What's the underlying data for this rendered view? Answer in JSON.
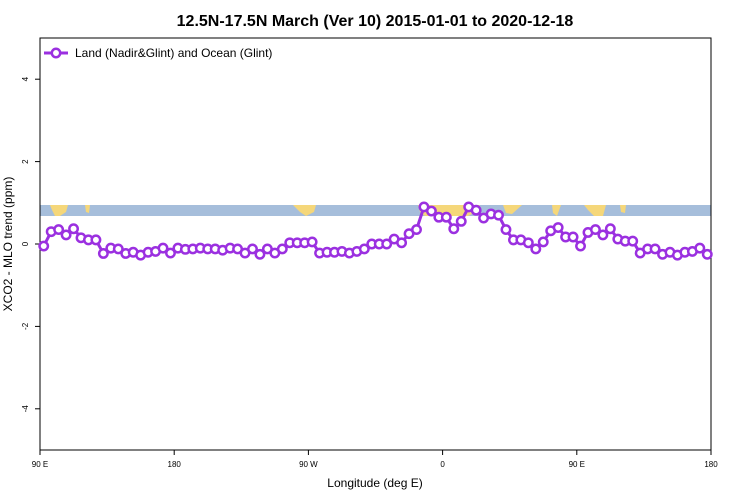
{
  "chart_data": {
    "type": "line",
    "title": "12.5N-17.5N March (Ver 10)   2015-01-01 to 2020-12-18",
    "x_label": "Longitude (deg E)",
    "y_label": "XCO2 - MLO trend (ppm)",
    "xlim": [
      90,
      540
    ],
    "ylim": [
      -5,
      5
    ],
    "xticks": [
      {
        "value": 90,
        "label": "90 E"
      },
      {
        "value": 180,
        "label": "180"
      },
      {
        "value": 270,
        "label": "90 W"
      },
      {
        "value": 360,
        "label": "0"
      },
      {
        "value": 450,
        "label": "90 E"
      },
      {
        "value": 540,
        "label": "180"
      }
    ],
    "yticks": [
      -4,
      -2,
      0,
      2,
      4
    ],
    "legend": "top-left",
    "x": [
      92.5,
      97.5,
      102.5,
      107.5,
      112.5,
      117.5,
      122.5,
      127.5,
      132.5,
      137.5,
      142.5,
      147.5,
      152.5,
      157.5,
      162.5,
      167.5,
      172.5,
      177.5,
      182.5,
      187.5,
      192.5,
      197.5,
      202.5,
      207.5,
      212.5,
      217.5,
      222.5,
      227.5,
      232.5,
      237.5,
      242.5,
      247.5,
      252.5,
      257.5,
      262.5,
      267.5,
      272.5,
      277.5,
      282.5,
      287.5,
      292.5,
      297.5,
      302.5,
      307.5,
      312.5,
      317.5,
      322.5,
      327.5,
      332.5,
      337.5,
      342.5,
      347.5,
      352.5,
      357.5,
      362.5,
      367.5,
      372.5,
      377.5,
      382.5,
      387.5,
      392.5,
      397.5,
      402.5,
      407.5,
      412.5,
      417.5,
      422.5,
      427.5,
      432.5,
      437.5,
      442.5,
      447.5,
      452.5,
      457.5,
      462.5,
      467.5,
      472.5,
      477.5,
      482.5,
      487.5,
      492.5,
      497.5,
      502.5,
      507.5,
      512.5,
      517.5,
      522.5,
      527.5,
      532.5,
      537.5
    ],
    "series": [
      {
        "name": "Land (Nadir&Glint) and Ocean (Glint)",
        "color": "#9b30e0",
        "values": [
          -0.05,
          0.3,
          0.35,
          0.22,
          0.37,
          0.15,
          0.1,
          0.1,
          -0.23,
          -0.1,
          -0.12,
          -0.23,
          -0.2,
          -0.27,
          -0.2,
          -0.18,
          -0.1,
          -0.22,
          -0.1,
          -0.13,
          -0.12,
          -0.1,
          -0.12,
          -0.12,
          -0.15,
          -0.1,
          -0.12,
          -0.22,
          -0.12,
          -0.25,
          -0.12,
          -0.22,
          -0.12,
          0.03,
          0.03,
          0.03,
          0.05,
          -0.22,
          -0.2,
          -0.2,
          -0.18,
          -0.22,
          -0.18,
          -0.12,
          0,
          0,
          0,
          0.12,
          0.03,
          0.25,
          0.35,
          0.9,
          0.8,
          0.65,
          0.65,
          0.37,
          0.55,
          0.9,
          0.82,
          0.63,
          0.73,
          0.7,
          0.35,
          0.1,
          0.1,
          0.03,
          -0.12,
          0.05,
          0.32,
          0.4,
          0.17,
          0.17,
          -0.05,
          0.28,
          0.35,
          0.22,
          0.37,
          0.12,
          0.07,
          0.07,
          -0.22,
          -0.12,
          -0.12,
          -0.25,
          -0.2,
          -0.27,
          -0.2,
          -0.18,
          -0.1,
          -0.25
        ]
      }
    ]
  }
}
